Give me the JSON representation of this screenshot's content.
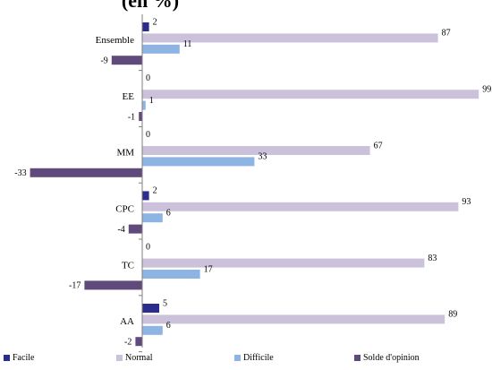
{
  "chart_data": {
    "type": "bar",
    "orientation": "horizontal",
    "title": "(en %)",
    "categories": [
      "Ensemble",
      "EE",
      "MM",
      "CPC",
      "TC",
      "AA"
    ],
    "series": [
      {
        "name": "Facile",
        "color": "#2b2c8e",
        "values": [
          2,
          0,
          0,
          2,
          0,
          5
        ]
      },
      {
        "name": "Normal",
        "color": "#ccc1da",
        "values": [
          87,
          99,
          67,
          93,
          83,
          89
        ]
      },
      {
        "name": "Difficile",
        "color": "#8eb4e3",
        "values": [
          11,
          1,
          33,
          6,
          17,
          6
        ]
      },
      {
        "name": "Solde d'opinion",
        "color": "#604a7b",
        "values": [
          -9,
          -1,
          -33,
          -4,
          -17,
          -2
        ]
      }
    ],
    "legend_position": "bottom",
    "grid": false
  }
}
